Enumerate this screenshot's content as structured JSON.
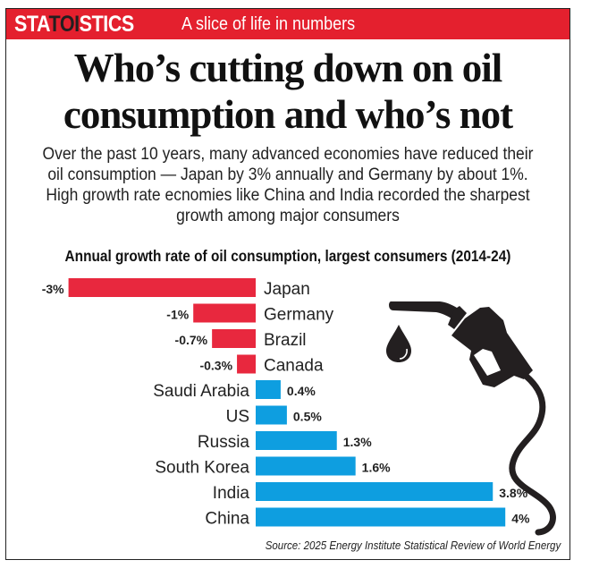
{
  "header": {
    "brand_prefix": "STA",
    "brand_mid": "TOI",
    "brand_suffix": "STICS",
    "tagline": "A slice of life in numbers"
  },
  "headline_lines": [
    "Who’s cutting down on oil",
    "consumption and who’s not"
  ],
  "subtitle_lines": [
    "Over the past 10 years, many advanced economies have reduced their",
    "oil consumption — Japan by 3% annually and Germany by about 1%.",
    "High growth rate ecnomies like China and India recorded the sharpest",
    "growth among major consumers"
  ],
  "source": "Source: 2025 Energy Institute Statistical Review of World Energy",
  "colors": {
    "banner": "#e4202e",
    "negative": "#e8283e",
    "positive": "#0e9ee0",
    "icon": "#231f20"
  },
  "icons": [
    "fuel-pump-nozzle-icon",
    "oil-drop-icon"
  ],
  "chart_data": {
    "type": "bar",
    "orientation": "horizontal",
    "title": "Annual growth rate of oil consumption, largest consumers (2014-24)",
    "xlabel": "",
    "ylabel": "",
    "unit": "%",
    "xlim": [
      -3,
      4
    ],
    "grid": false,
    "categories": [
      "Japan",
      "Germany",
      "Brazil",
      "Canada",
      "Saudi Arabia",
      "US",
      "Russia",
      "South Korea",
      "India",
      "China"
    ],
    "values": [
      -3,
      -1,
      -0.7,
      -0.3,
      0.4,
      0.5,
      1.3,
      1.6,
      3.8,
      4
    ],
    "labels": [
      "-3%",
      "-1%",
      "-0.7%",
      "-0.3%",
      "0.4%",
      "0.5%",
      "1.3%",
      "1.6%",
      "3.8%",
      "4%"
    ]
  }
}
